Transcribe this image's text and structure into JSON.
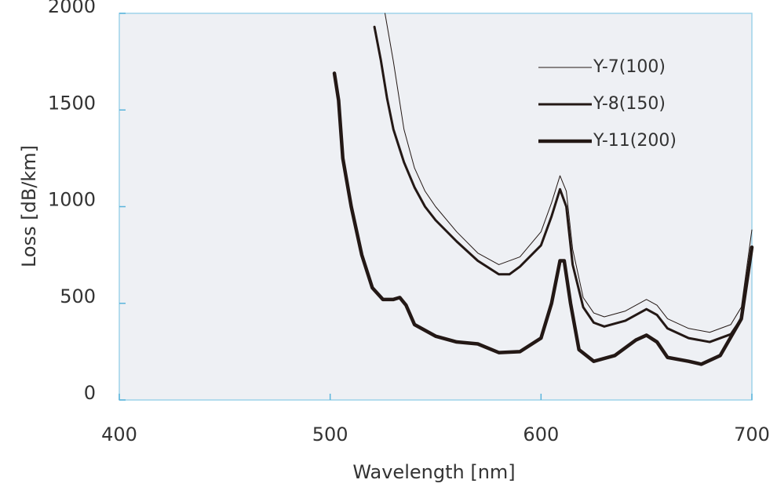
{
  "chart_data": {
    "type": "line",
    "x_label": "Wavelength [nm]",
    "y_label": "Loss [dB/km]",
    "xlim": [
      400,
      700
    ],
    "xticks": [
      400,
      500,
      600,
      700
    ],
    "ylim": [
      0,
      2000
    ],
    "yticks": [
      0,
      500,
      1000,
      1500,
      2000
    ],
    "legend": "upper right",
    "series": [
      {
        "name": "Y-7(100)",
        "color": "#231815",
        "line_width": 1,
        "x": [
          526,
          530,
          535,
          540,
          545,
          550,
          560,
          570,
          580,
          590,
          600,
          605,
          609,
          612,
          615,
          620,
          625,
          630,
          640,
          650,
          655,
          660,
          670,
          680,
          690,
          695,
          700
        ],
        "values": [
          2000,
          1750,
          1400,
          1200,
          1080,
          1000,
          870,
          760,
          700,
          740,
          870,
          1020,
          1160,
          1080,
          780,
          530,
          450,
          430,
          460,
          520,
          490,
          420,
          370,
          350,
          390,
          480,
          880
        ]
      },
      {
        "name": "Y-8(150)",
        "color": "#231815",
        "line_width": 3,
        "x": [
          521,
          524,
          527,
          530,
          535,
          540,
          545,
          550,
          560,
          570,
          580,
          585,
          590,
          600,
          605,
          609,
          612,
          615,
          620,
          625,
          630,
          640,
          650,
          655,
          660,
          670,
          680,
          690,
          695,
          700
        ],
        "values": [
          1930,
          1760,
          1560,
          1400,
          1230,
          1100,
          1000,
          930,
          820,
          720,
          650,
          650,
          690,
          800,
          950,
          1090,
          1000,
          700,
          480,
          400,
          380,
          410,
          470,
          440,
          370,
          320,
          300,
          340,
          420,
          780
        ]
      },
      {
        "name": "Y-11(200)",
        "color": "#231815",
        "line_width": 4.5,
        "x": [
          502,
          504,
          506,
          510,
          515,
          520,
          525,
          530,
          533,
          536,
          540,
          550,
          560,
          570,
          580,
          590,
          600,
          605,
          609,
          611,
          614,
          618,
          625,
          635,
          645,
          650,
          655,
          660,
          670,
          676,
          685,
          695,
          700
        ],
        "values": [
          1690,
          1550,
          1250,
          1000,
          750,
          580,
          520,
          520,
          530,
          490,
          390,
          330,
          300,
          290,
          245,
          250,
          320,
          500,
          720,
          720,
          500,
          260,
          200,
          230,
          310,
          335,
          300,
          220,
          200,
          185,
          230,
          420,
          790
        ]
      }
    ]
  }
}
